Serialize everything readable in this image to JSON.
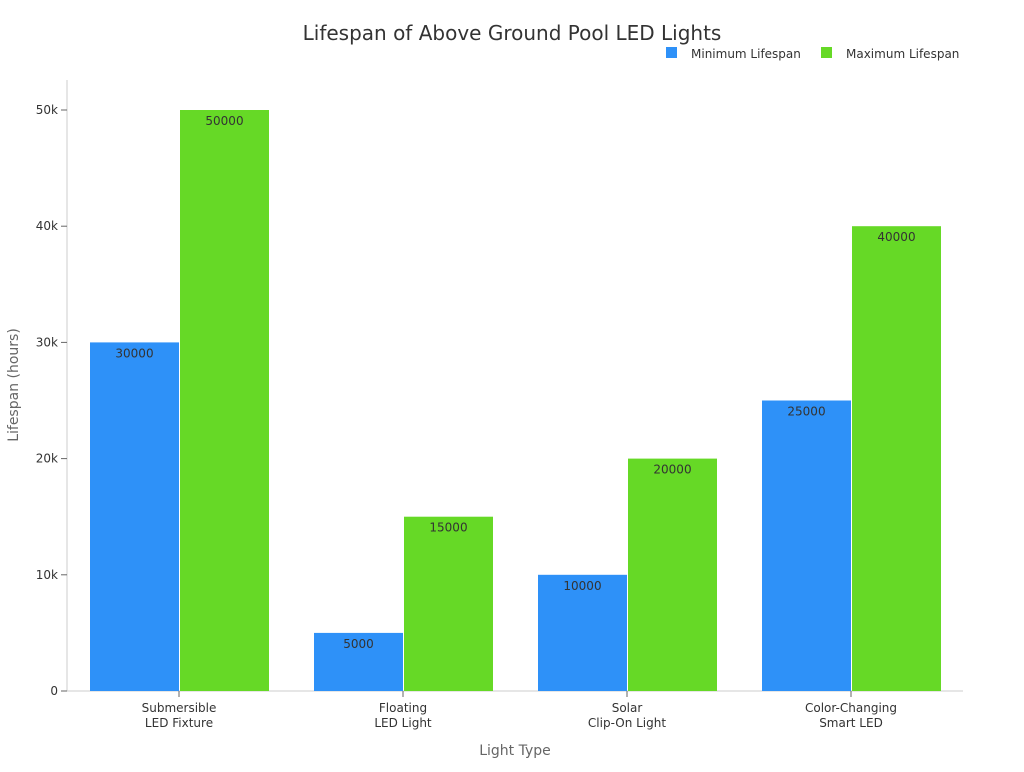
{
  "chart_data": {
    "type": "bar",
    "title": "Lifespan of Above Ground Pool LED Lights",
    "xlabel": "Light Type",
    "ylabel": "Lifespan (hours)",
    "categories": [
      [
        "Submersible",
        "LED Fixture"
      ],
      [
        "Floating",
        "LED Light"
      ],
      [
        "Solar",
        "Clip-On Light"
      ],
      [
        "Color-Changing",
        "Smart LED"
      ]
    ],
    "series": [
      {
        "name": "Minimum Lifespan",
        "color": "#2e91f8",
        "values": [
          30000,
          5000,
          10000,
          25000
        ]
      },
      {
        "name": "Maximum Lifespan",
        "color": "#66d926",
        "values": [
          50000,
          15000,
          20000,
          40000
        ]
      }
    ],
    "ylim": [
      0,
      52500
    ],
    "yticks": [
      0,
      10000,
      20000,
      30000,
      40000,
      50000
    ],
    "ytick_labels": [
      "0",
      "10k",
      "20k",
      "30k",
      "40k",
      "50k"
    ],
    "legend_position": "top-right",
    "grid": false,
    "data_labels": true
  }
}
